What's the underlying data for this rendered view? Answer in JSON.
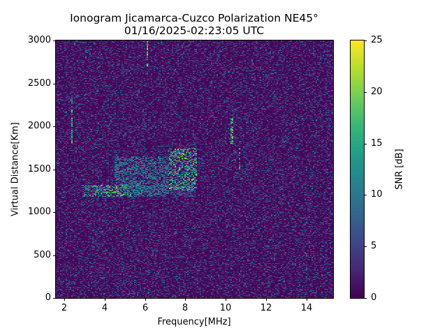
{
  "chart_data": {
    "type": "heatmap",
    "title": "Ionogram Jicamarca-Cuzco Polarization NE45°",
    "subtitle": "01/16/2025-02:23:05 UTC",
    "xlabel": "Frequency[MHz]",
    "ylabel": "Virtual Distance[Km]",
    "xlim": [
      1.6,
      15.3
    ],
    "ylim": [
      0,
      3000
    ],
    "xticks": [
      2,
      4,
      6,
      8,
      10,
      12,
      14
    ],
    "yticks": [
      0,
      500,
      1000,
      1500,
      2000,
      2500,
      3000
    ],
    "colorbar": {
      "label": "SNR [dB]",
      "range": [
        0,
        25
      ],
      "ticks": [
        0,
        5,
        10,
        15,
        20,
        25
      ],
      "colormap": "viridis"
    },
    "grid": false,
    "background_noise_snr_db": [
      0,
      8
    ],
    "features": [
      {
        "name": "main echo trace",
        "freq_mhz": [
          2.9,
          8.5
        ],
        "distance_km": [
          1180,
          1320
        ],
        "peak_snr_db": 24,
        "peak_at_mhz": 4.3
      },
      {
        "name": "spread echo cloud",
        "freq_mhz": [
          7.2,
          8.6
        ],
        "distance_km": [
          1250,
          1750
        ],
        "peak_snr_db": 22
      },
      {
        "name": "diffuse echo region",
        "freq_mhz": [
          4.5,
          7.2
        ],
        "distance_km": [
          1200,
          1650
        ],
        "peak_snr_db": 14
      },
      {
        "name": "vertical interference line",
        "freq_mhz": 2.4,
        "distance_km": [
          1800,
          2400
        ],
        "peak_snr_db": 20
      },
      {
        "name": "vertical interference line",
        "freq_mhz": 6.1,
        "distance_km": [
          2700,
          3000
        ],
        "peak_snr_db": 25
      },
      {
        "name": "vertical interference line",
        "freq_mhz": 10.3,
        "distance_km": [
          1800,
          2100
        ],
        "peak_snr_db": 22
      },
      {
        "name": "vertical interference line",
        "freq_mhz": 10.7,
        "distance_km": [
          1500,
          1750
        ],
        "peak_snr_db": 18
      }
    ]
  },
  "colors": {
    "viridis": [
      "#440154",
      "#482878",
      "#3e4989",
      "#31688e",
      "#26828e",
      "#1f9e89",
      "#35b779",
      "#6ece58",
      "#b5de2b",
      "#fde725"
    ]
  }
}
